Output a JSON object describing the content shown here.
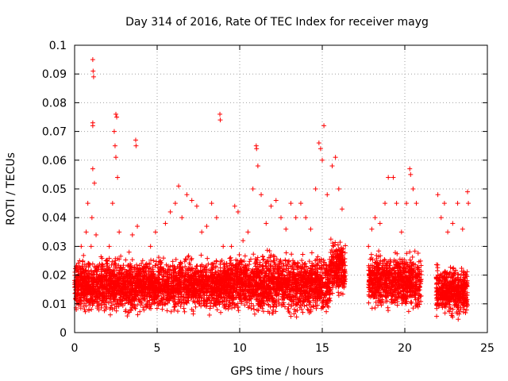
{
  "chart_data": {
    "type": "scatter",
    "title": "Day 314 of 2016, Rate Of TEC Index for receiver mayg",
    "xlabel": "GPS time / hours",
    "ylabel": "ROTI / TECUs",
    "xlim": [
      0,
      25
    ],
    "ylim": [
      0,
      0.1
    ],
    "xticks": [
      0,
      5,
      10,
      15,
      20,
      25
    ],
    "yticks": [
      0,
      0.01,
      0.02,
      0.03,
      0.04,
      0.05,
      0.06,
      0.07,
      0.08,
      0.09,
      0.1
    ],
    "xtick_labels": [
      "0",
      "5",
      "10",
      "15",
      "20",
      "25"
    ],
    "ytick_labels": [
      "0",
      "0.01",
      "0.02",
      "0.03",
      "0.04",
      "0.05",
      "0.06",
      "0.07",
      "0.08",
      "0.09",
      "0.1"
    ],
    "grid": true,
    "marker": "+",
    "color": "#ff0000",
    "series": [
      {
        "points": [
          [
            0.1,
            0.012
          ],
          [
            0.2,
            0.018
          ],
          [
            0.3,
            0.025
          ],
          [
            0.4,
            0.03
          ],
          [
            0.5,
            0.022
          ],
          [
            0.6,
            0.008
          ],
          [
            0.7,
            0.035
          ],
          [
            0.8,
            0.045
          ],
          [
            0.9,
            0.015
          ],
          [
            1.0,
            0.03
          ],
          [
            1.05,
            0.04
          ],
          [
            1.1,
            0.095
          ],
          [
            1.12,
            0.091
          ],
          [
            1.15,
            0.089
          ],
          [
            1.1,
            0.073
          ],
          [
            1.1,
            0.072
          ],
          [
            1.1,
            0.057
          ],
          [
            1.2,
            0.052
          ],
          [
            1.3,
            0.034
          ],
          [
            1.5,
            0.02
          ],
          [
            1.7,
            0.012
          ],
          [
            1.9,
            0.025
          ],
          [
            2.1,
            0.03
          ],
          [
            2.3,
            0.045
          ],
          [
            2.5,
            0.076
          ],
          [
            2.55,
            0.075
          ],
          [
            2.4,
            0.07
          ],
          [
            2.45,
            0.065
          ],
          [
            2.5,
            0.061
          ],
          [
            2.6,
            0.054
          ],
          [
            2.7,
            0.035
          ],
          [
            2.9,
            0.018
          ],
          [
            3.1,
            0.012
          ],
          [
            3.3,
            0.028
          ],
          [
            3.5,
            0.034
          ],
          [
            3.7,
            0.067
          ],
          [
            3.72,
            0.065
          ],
          [
            3.8,
            0.037
          ],
          [
            4.0,
            0.022
          ],
          [
            4.3,
            0.016
          ],
          [
            4.6,
            0.03
          ],
          [
            4.9,
            0.035
          ],
          [
            5.2,
            0.025
          ],
          [
            5.5,
            0.038
          ],
          [
            5.8,
            0.042
          ],
          [
            6.1,
            0.045
          ],
          [
            6.3,
            0.051
          ],
          [
            6.5,
            0.04
          ],
          [
            6.8,
            0.048
          ],
          [
            7.1,
            0.046
          ],
          [
            7.4,
            0.044
          ],
          [
            7.7,
            0.035
          ],
          [
            8.0,
            0.037
          ],
          [
            8.3,
            0.045
          ],
          [
            8.6,
            0.04
          ],
          [
            8.8,
            0.076
          ],
          [
            8.82,
            0.074
          ],
          [
            9.0,
            0.03
          ],
          [
            9.2,
            0.024
          ],
          [
            9.5,
            0.03
          ],
          [
            9.7,
            0.044
          ],
          [
            9.9,
            0.042
          ],
          [
            10.2,
            0.032
          ],
          [
            10.5,
            0.035
          ],
          [
            10.8,
            0.05
          ],
          [
            11.0,
            0.065
          ],
          [
            11.02,
            0.064
          ],
          [
            11.1,
            0.058
          ],
          [
            11.3,
            0.048
          ],
          [
            11.6,
            0.038
          ],
          [
            11.9,
            0.044
          ],
          [
            12.2,
            0.046
          ],
          [
            12.5,
            0.04
          ],
          [
            12.8,
            0.036
          ],
          [
            13.1,
            0.045
          ],
          [
            13.4,
            0.04
          ],
          [
            13.7,
            0.045
          ],
          [
            14.0,
            0.04
          ],
          [
            14.3,
            0.036
          ],
          [
            14.6,
            0.05
          ],
          [
            14.8,
            0.066
          ],
          [
            14.9,
            0.064
          ],
          [
            15.0,
            0.06
          ],
          [
            15.1,
            0.072
          ],
          [
            15.3,
            0.048
          ],
          [
            15.6,
            0.058
          ],
          [
            15.8,
            0.061
          ],
          [
            16.0,
            0.05
          ],
          [
            16.2,
            0.043
          ],
          [
            17.8,
            0.03
          ],
          [
            18.0,
            0.036
          ],
          [
            18.2,
            0.04
          ],
          [
            18.5,
            0.038
          ],
          [
            18.8,
            0.045
          ],
          [
            19.0,
            0.054
          ],
          [
            19.3,
            0.054
          ],
          [
            19.5,
            0.045
          ],
          [
            19.8,
            0.035
          ],
          [
            20.1,
            0.045
          ],
          [
            20.3,
            0.057
          ],
          [
            20.35,
            0.055
          ],
          [
            20.5,
            0.05
          ],
          [
            20.7,
            0.045
          ],
          [
            22.0,
            0.048
          ],
          [
            22.2,
            0.04
          ],
          [
            22.4,
            0.045
          ],
          [
            22.6,
            0.035
          ],
          [
            22.9,
            0.038
          ],
          [
            23.2,
            0.045
          ],
          [
            23.5,
            0.036
          ],
          [
            23.8,
            0.049
          ],
          [
            23.85,
            0.045
          ]
        ],
        "density_bands": [
          {
            "x": [
              0.0,
              9.3
            ],
            "y": [
              0.005,
              0.028
            ]
          },
          {
            "x": [
              9.3,
              15.5
            ],
            "y": [
              0.004,
              0.03
            ]
          },
          {
            "x": [
              15.5,
              16.4
            ],
            "y": [
              0.01,
              0.035
            ]
          },
          {
            "x": [
              17.8,
              19.6
            ],
            "y": [
              0.006,
              0.03
            ]
          },
          {
            "x": [
              19.6,
              21.0
            ],
            "y": [
              0.005,
              0.03
            ]
          },
          {
            "x": [
              21.9,
              23.8
            ],
            "y": [
              0.004,
              0.025
            ]
          }
        ]
      }
    ]
  }
}
